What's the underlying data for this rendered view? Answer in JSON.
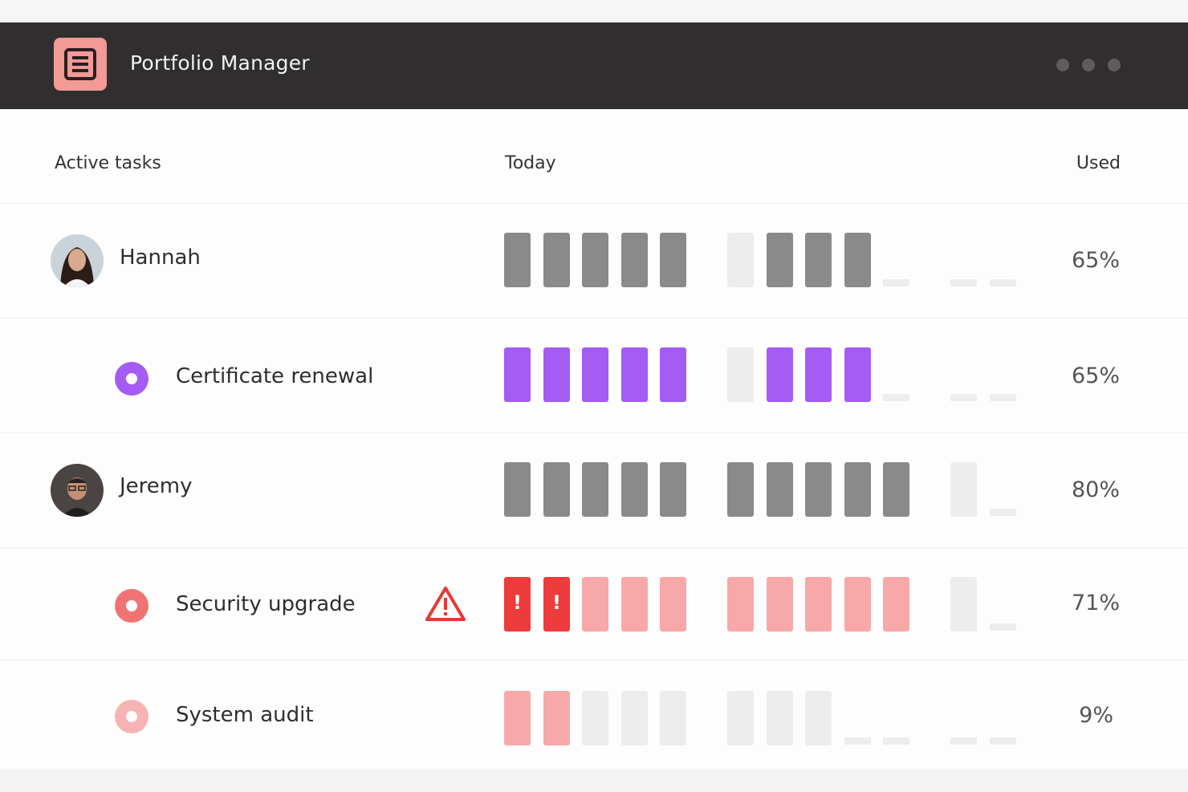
{
  "app": {
    "title": "Portfolio Manager"
  },
  "colors": {
    "titlebar": "#302e2e",
    "logo": "#f19a96",
    "gray": "#8a8a8a",
    "purple": "#a45cf5",
    "red": "#ee3b3b",
    "pink": "#f8a8a8",
    "empty": "#ededed"
  },
  "table": {
    "headers": {
      "tasks": "Active tasks",
      "today": "Today",
      "used": "Used"
    },
    "rows": [
      {
        "kind": "person",
        "name": "Hannah",
        "used": "65%",
        "avatar": "avatar-hannah"
      },
      {
        "kind": "task",
        "name": "Certificate renewal",
        "used": "65%",
        "dot_color": "#a45cf5"
      },
      {
        "kind": "person",
        "name": "Jeremy",
        "used": "80%",
        "avatar": "avatar-jeremy"
      },
      {
        "kind": "task",
        "name": "Security upgrade",
        "used": "71%",
        "dot_color": "#f07373",
        "warning": true,
        "warning_icon": "warning-triangle-icon",
        "alert_marks": [
          "!",
          "!"
        ]
      },
      {
        "kind": "task",
        "name": "System audit",
        "used": "9%",
        "dot_color": "#f7b3b3"
      }
    ]
  }
}
